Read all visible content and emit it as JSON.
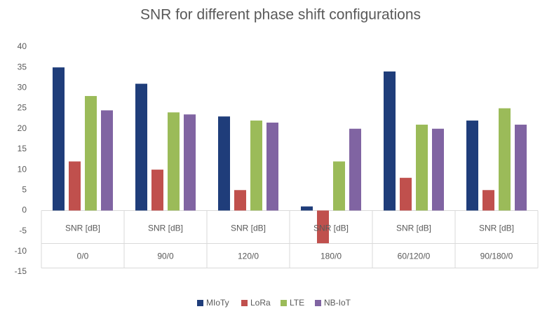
{
  "chart_data": {
    "type": "bar",
    "title": "SNR for different phase shift configurations",
    "categories": [
      "0/0",
      "90/0",
      "120/0",
      "180/0",
      "60/120/0",
      "90/180/0"
    ],
    "subcategories": [
      "SNR [dB]",
      "SNR [dB]",
      "SNR [dB]",
      "SNR [dB]",
      "SNR [dB]",
      "SNR [dB]"
    ],
    "series": [
      {
        "name": "MIoTy",
        "color": "#1f3d7a",
        "values": [
          35,
          31,
          23,
          1,
          34,
          22
        ]
      },
      {
        "name": "LoRa",
        "color": "#c0504d",
        "values": [
          12,
          10,
          5,
          -8,
          8,
          5
        ]
      },
      {
        "name": "LTE",
        "color": "#9bbb59",
        "values": [
          28,
          24,
          22,
          12,
          21,
          25
        ]
      },
      {
        "name": "NB-IoT",
        "color": "#8064a2",
        "values": [
          24.5,
          23.5,
          21.5,
          20,
          20,
          21
        ]
      }
    ],
    "ylim": [
      -15,
      40
    ],
    "yticks": [
      -15,
      -10,
      -5,
      0,
      5,
      10,
      15,
      20,
      25,
      30,
      35,
      40
    ],
    "grid": false,
    "legend": "bottom"
  }
}
